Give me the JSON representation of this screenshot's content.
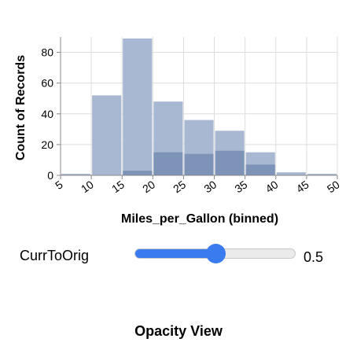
{
  "chart_data": {
    "type": "bar",
    "xlabel": "Miles_per_Gallon (binned)",
    "ylabel": "Count of Records",
    "x_ticks": [
      "5",
      "10",
      "15",
      "20",
      "25",
      "30",
      "35",
      "40",
      "45",
      "50"
    ],
    "y_ticks": [
      "0",
      "20",
      "40",
      "60",
      "80"
    ],
    "xlim": [
      5,
      50
    ],
    "ylim": [
      0,
      90
    ],
    "grid": true,
    "bins": [
      [
        5,
        10
      ],
      [
        10,
        15
      ],
      [
        15,
        20
      ],
      [
        20,
        25
      ],
      [
        25,
        30
      ],
      [
        30,
        35
      ],
      [
        35,
        40
      ],
      [
        40,
        45
      ],
      [
        45,
        50
      ]
    ],
    "series": [
      {
        "values": [
          1,
          52,
          89,
          48,
          36,
          29,
          15,
          2,
          1
        ],
        "color": "#a8b8d2"
      },
      {
        "values": [
          0,
          0,
          3,
          15,
          14,
          16,
          7,
          0,
          0
        ],
        "color": "#7d93b7"
      }
    ]
  },
  "slider": {
    "label": "CurrToOrig",
    "value": "0.5",
    "fraction": 0.5,
    "color": "#3a7bf0"
  },
  "view_title": "Opacity View"
}
